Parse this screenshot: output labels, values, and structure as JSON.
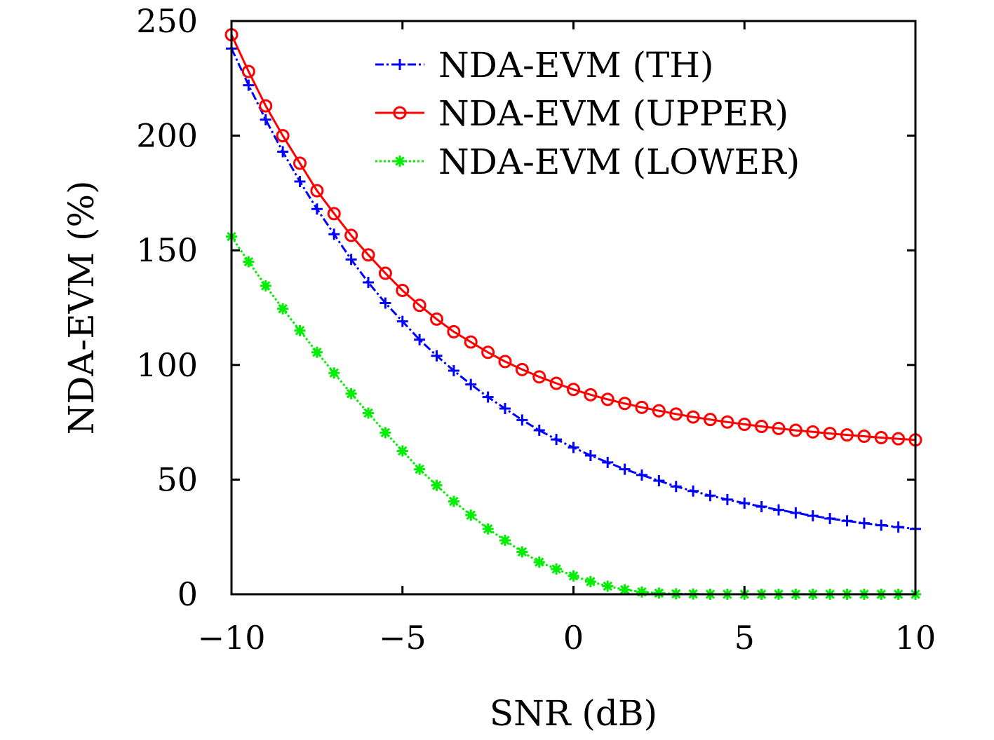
{
  "chart_data": {
    "type": "line",
    "title": "",
    "xlabel": "SNR (dB)",
    "ylabel": "NDA-EVM (%)",
    "xlim": [
      -10,
      10
    ],
    "ylim": [
      0,
      250
    ],
    "x_ticks": [
      "−10",
      "−5",
      "0",
      "5",
      "10"
    ],
    "y_ticks": [
      "0",
      "50",
      "100",
      "150",
      "200",
      "250"
    ],
    "x_tick_values": [
      -10,
      -5,
      0,
      5,
      10
    ],
    "y_tick_values": [
      0,
      50,
      100,
      150,
      200,
      250
    ],
    "grid": false,
    "legend_position": "top-right",
    "x": [
      -10,
      -9.5,
      -9,
      -8.5,
      -8,
      -7.5,
      -7,
      -6.5,
      -6,
      -5.5,
      -5,
      -4.5,
      -4,
      -3.5,
      -3,
      -2.5,
      -2,
      -1.5,
      -1,
      -0.5,
      0,
      0.5,
      1,
      1.5,
      2,
      2.5,
      3,
      3.5,
      4,
      4.5,
      5,
      5.5,
      6,
      6.5,
      7,
      7.5,
      8,
      8.5,
      9,
      9.5,
      10
    ],
    "series": [
      {
        "name": "NDA-EVM (TH)",
        "color": "#0000ff",
        "marker": "plus",
        "line_style": "dash-dot",
        "values": [
          238,
          222,
          207,
          193,
          180,
          168,
          157,
          146,
          136,
          127,
          119,
          111,
          104,
          97.5,
          91.5,
          86,
          81,
          76,
          71.5,
          67.5,
          64,
          60.5,
          57.5,
          54.5,
          52,
          49.5,
          47,
          45,
          43,
          41.3,
          39.7,
          38.2,
          36.8,
          35.5,
          34.2,
          33,
          32,
          31,
          30.1,
          29.3,
          28.5
        ]
      },
      {
        "name": "NDA-EVM (UPPER)",
        "color": "#ff0000",
        "marker": "circle",
        "line_style": "solid",
        "values": [
          244,
          228,
          213,
          200,
          188,
          176,
          166,
          156.5,
          148,
          140,
          132.5,
          126,
          120,
          114.5,
          110,
          105.5,
          101.5,
          98,
          94.8,
          92,
          89.3,
          87,
          85,
          83.2,
          81.5,
          80,
          78.6,
          77.3,
          76.2,
          75.1,
          74.1,
          73.2,
          72.3,
          71.5,
          70.8,
          70.1,
          69.5,
          68.9,
          68.3,
          67.8,
          67.3
        ]
      },
      {
        "name": "NDA-EVM (LOWER)",
        "color": "#00ee00",
        "marker": "asterisk",
        "line_style": "dotted",
        "values": [
          156,
          145,
          134.5,
          124.5,
          115,
          105.5,
          96.5,
          87.5,
          79,
          70.5,
          62.5,
          54.5,
          47.5,
          40.5,
          34.5,
          28.5,
          23.5,
          18.5,
          14,
          11,
          8,
          5.5,
          3.5,
          2,
          1,
          0.5,
          0.2,
          0.1,
          0,
          0,
          0,
          0,
          0,
          0,
          0,
          0,
          0,
          0,
          0,
          0,
          0
        ]
      }
    ]
  }
}
